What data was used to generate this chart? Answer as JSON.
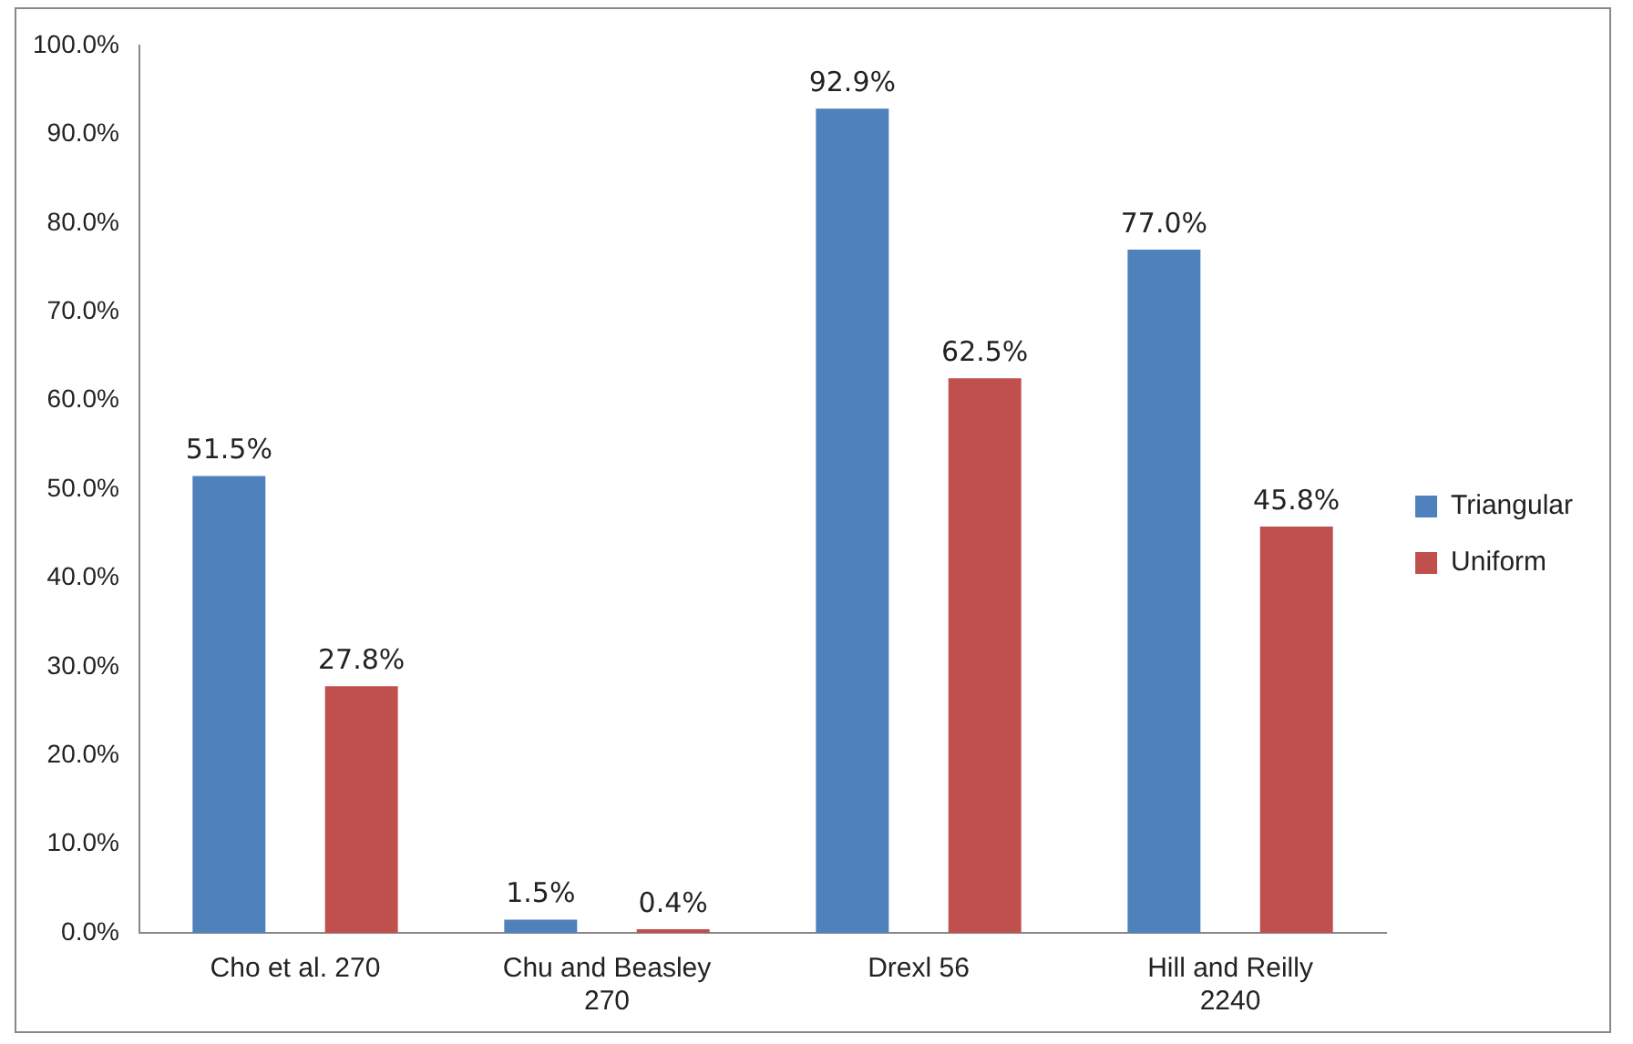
{
  "chart_data": {
    "type": "bar",
    "categories": [
      "Cho et al. 270",
      "Chu and Beasley 270",
      "Drexl 56",
      "Hill and Reilly 2240"
    ],
    "series": [
      {
        "name": "Triangular",
        "color": "#4f81bd",
        "values": [
          51.5,
          1.5,
          92.9,
          77.0
        ],
        "value_labels": [
          "51.5%",
          "1.5%",
          "92.9%",
          "77.0%"
        ]
      },
      {
        "name": "Uniform",
        "color": "#c0504d",
        "values": [
          27.8,
          0.4,
          62.5,
          45.8
        ],
        "value_labels": [
          "27.8%",
          "0.4%",
          "62.5%",
          "45.8%"
        ]
      }
    ],
    "ylim": [
      0,
      100
    ],
    "yticks": [
      {
        "value": 0,
        "label": "0.0%"
      },
      {
        "value": 10,
        "label": "10.0%"
      },
      {
        "value": 20,
        "label": "20.0%"
      },
      {
        "value": 30,
        "label": "30.0%"
      },
      {
        "value": 40,
        "label": "40.0%"
      },
      {
        "value": 50,
        "label": "50.0%"
      },
      {
        "value": 60,
        "label": "60.0%"
      },
      {
        "value": 70,
        "label": "70.0%"
      },
      {
        "value": 80,
        "label": "80.0%"
      },
      {
        "value": 90,
        "label": "90.0%"
      },
      {
        "value": 100,
        "label": "100.0%"
      }
    ],
    "grid": false,
    "legend": "right"
  }
}
